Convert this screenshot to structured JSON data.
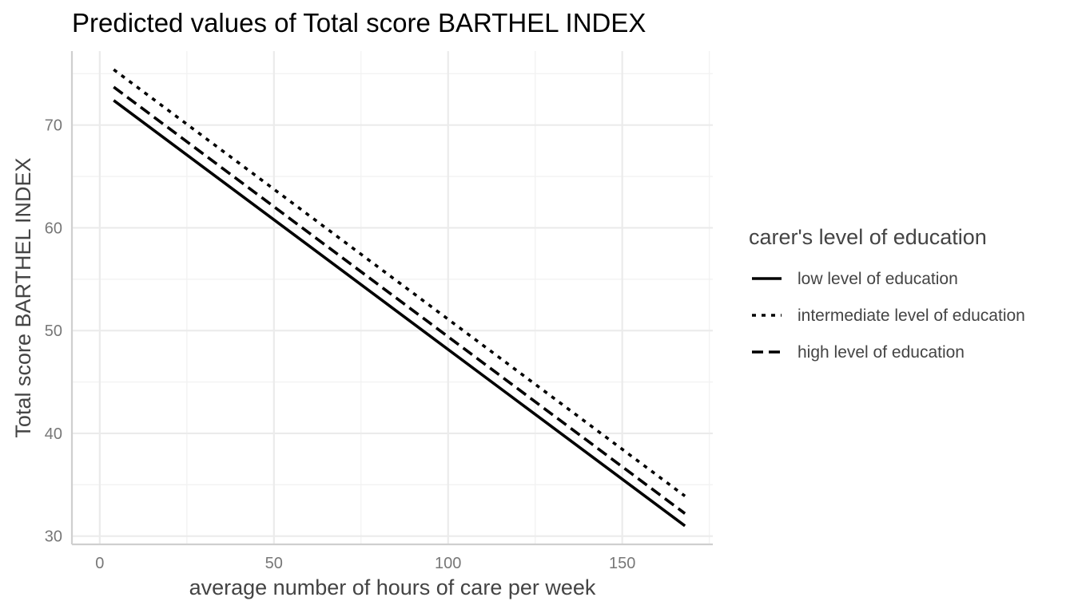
{
  "chart_data": {
    "type": "line",
    "title": "Predicted values of Total score BARTHEL INDEX",
    "xlabel": "average number of hours of care per week",
    "ylabel": "Total score BARTHEL INDEX",
    "xlim": [
      -8,
      176
    ],
    "ylim": [
      29.2,
      77.2
    ],
    "x_major_ticks": [
      0,
      50,
      100,
      150
    ],
    "x_tick_labels": [
      "0",
      "50",
      "100",
      "150"
    ],
    "x_minor_ticks": [
      25,
      75,
      125,
      175
    ],
    "y_major_ticks": [
      30,
      40,
      50,
      60,
      70
    ],
    "y_tick_labels": [
      "30",
      "40",
      "50",
      "60",
      "70"
    ],
    "y_minor_ticks": [
      35,
      45,
      55,
      65,
      75
    ],
    "grid": true,
    "legend": {
      "title": "carer's level of education",
      "position": "right"
    },
    "series": [
      {
        "name": "low level of education",
        "linetype": "solid",
        "color": "#000000",
        "x": [
          4,
          168
        ],
        "y": [
          72.4,
          31.0
        ]
      },
      {
        "name": "intermediate level of education",
        "linetype": "dotted",
        "color": "#000000",
        "x": [
          4,
          168
        ],
        "y": [
          75.4,
          33.9
        ]
      },
      {
        "name": "high level of education",
        "linetype": "dashed",
        "color": "#000000",
        "x": [
          4,
          168
        ],
        "y": [
          73.7,
          32.2
        ]
      }
    ]
  }
}
